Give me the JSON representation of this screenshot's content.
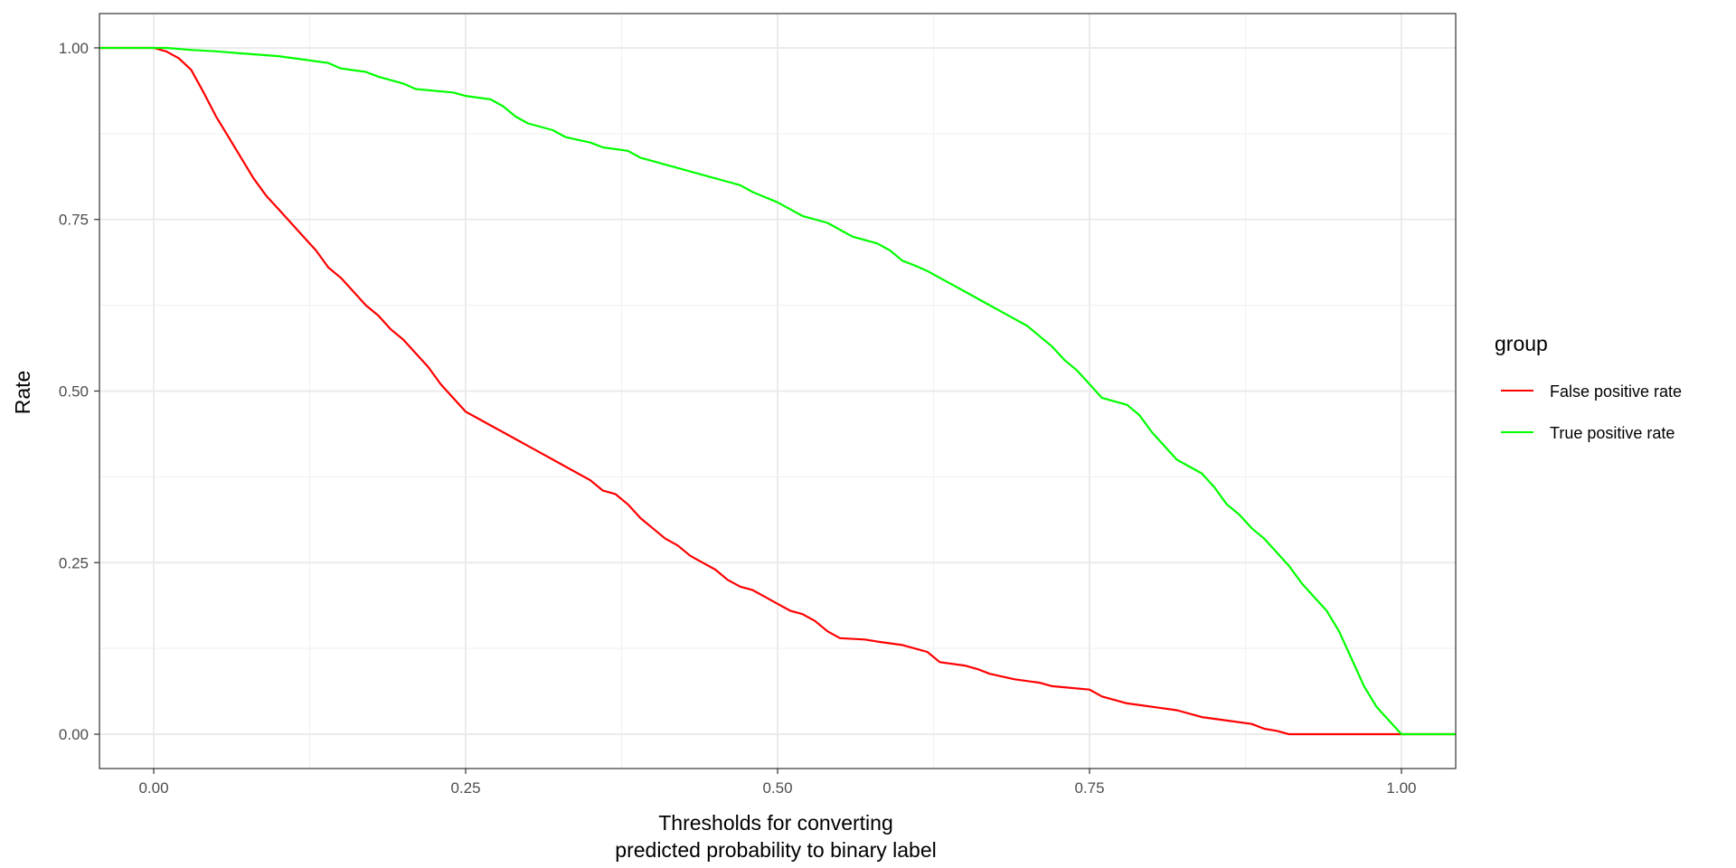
{
  "chart_data": {
    "type": "line",
    "title": "",
    "xlabel_lines": [
      "Thresholds for converting",
      "predicted probability to binary label"
    ],
    "ylabel": "Rate",
    "xlim": [
      -0.0435,
      1.0435
    ],
    "ylim": [
      -0.05,
      1.05
    ],
    "x_ticks": [
      0.0,
      0.25,
      0.5,
      0.75,
      1.0
    ],
    "x_tick_labels": [
      "0.00",
      "0.25",
      "0.50",
      "0.75",
      "1.00"
    ],
    "y_ticks": [
      0.0,
      0.25,
      0.5,
      0.75,
      1.0
    ],
    "y_tick_labels": [
      "0.00",
      "0.25",
      "0.50",
      "0.75",
      "1.00"
    ],
    "grid": true,
    "legend": {
      "title": "group",
      "placement": "right"
    },
    "series": [
      {
        "name": "False positive rate",
        "color": "#FF0000",
        "points": [
          [
            -0.0435,
            1.0
          ],
          [
            0.0,
            1.0
          ],
          [
            0.01,
            0.995
          ],
          [
            0.02,
            0.985
          ],
          [
            0.03,
            0.968
          ],
          [
            0.04,
            0.935
          ],
          [
            0.05,
            0.9
          ],
          [
            0.06,
            0.87
          ],
          [
            0.07,
            0.84
          ],
          [
            0.08,
            0.81
          ],
          [
            0.09,
            0.785
          ],
          [
            0.1,
            0.765
          ],
          [
            0.11,
            0.745
          ],
          [
            0.12,
            0.725
          ],
          [
            0.13,
            0.705
          ],
          [
            0.14,
            0.68
          ],
          [
            0.15,
            0.665
          ],
          [
            0.16,
            0.645
          ],
          [
            0.17,
            0.625
          ],
          [
            0.18,
            0.61
          ],
          [
            0.19,
            0.59
          ],
          [
            0.2,
            0.575
          ],
          [
            0.21,
            0.555
          ],
          [
            0.22,
            0.535
          ],
          [
            0.23,
            0.51
          ],
          [
            0.24,
            0.49
          ],
          [
            0.25,
            0.47
          ],
          [
            0.26,
            0.46
          ],
          [
            0.27,
            0.45
          ],
          [
            0.28,
            0.44
          ],
          [
            0.29,
            0.43
          ],
          [
            0.3,
            0.42
          ],
          [
            0.31,
            0.41
          ],
          [
            0.32,
            0.4
          ],
          [
            0.33,
            0.39
          ],
          [
            0.34,
            0.38
          ],
          [
            0.35,
            0.37
          ],
          [
            0.36,
            0.355
          ],
          [
            0.37,
            0.35
          ],
          [
            0.38,
            0.335
          ],
          [
            0.39,
            0.315
          ],
          [
            0.4,
            0.3
          ],
          [
            0.41,
            0.285
          ],
          [
            0.42,
            0.275
          ],
          [
            0.43,
            0.26
          ],
          [
            0.44,
            0.25
          ],
          [
            0.45,
            0.24
          ],
          [
            0.46,
            0.225
          ],
          [
            0.47,
            0.215
          ],
          [
            0.48,
            0.21
          ],
          [
            0.49,
            0.2
          ],
          [
            0.5,
            0.19
          ],
          [
            0.51,
            0.18
          ],
          [
            0.52,
            0.175
          ],
          [
            0.53,
            0.165
          ],
          [
            0.54,
            0.15
          ],
          [
            0.55,
            0.14
          ],
          [
            0.57,
            0.138
          ],
          [
            0.58,
            0.135
          ],
          [
            0.6,
            0.13
          ],
          [
            0.62,
            0.12
          ],
          [
            0.63,
            0.105
          ],
          [
            0.65,
            0.1
          ],
          [
            0.66,
            0.095
          ],
          [
            0.67,
            0.088
          ],
          [
            0.69,
            0.08
          ],
          [
            0.71,
            0.075
          ],
          [
            0.72,
            0.07
          ],
          [
            0.75,
            0.065
          ],
          [
            0.76,
            0.055
          ],
          [
            0.78,
            0.045
          ],
          [
            0.8,
            0.04
          ],
          [
            0.82,
            0.035
          ],
          [
            0.84,
            0.025
          ],
          [
            0.86,
            0.02
          ],
          [
            0.88,
            0.015
          ],
          [
            0.89,
            0.008
          ],
          [
            0.9,
            0.005
          ],
          [
            0.91,
            0.0
          ],
          [
            1.0,
            0.0
          ],
          [
            1.0435,
            0.0
          ]
        ]
      },
      {
        "name": "True positive rate",
        "color": "#00FF00",
        "points": [
          [
            -0.0435,
            1.0
          ],
          [
            0.01,
            1.0
          ],
          [
            0.03,
            0.997
          ],
          [
            0.05,
            0.995
          ],
          [
            0.07,
            0.992
          ],
          [
            0.1,
            0.988
          ],
          [
            0.12,
            0.983
          ],
          [
            0.14,
            0.978
          ],
          [
            0.15,
            0.97
          ],
          [
            0.17,
            0.965
          ],
          [
            0.18,
            0.958
          ],
          [
            0.2,
            0.948
          ],
          [
            0.21,
            0.94
          ],
          [
            0.24,
            0.935
          ],
          [
            0.25,
            0.93
          ],
          [
            0.27,
            0.925
          ],
          [
            0.28,
            0.915
          ],
          [
            0.29,
            0.9
          ],
          [
            0.3,
            0.89
          ],
          [
            0.32,
            0.88
          ],
          [
            0.33,
            0.87
          ],
          [
            0.35,
            0.862
          ],
          [
            0.36,
            0.855
          ],
          [
            0.38,
            0.85
          ],
          [
            0.39,
            0.84
          ],
          [
            0.4,
            0.835
          ],
          [
            0.42,
            0.825
          ],
          [
            0.44,
            0.815
          ],
          [
            0.46,
            0.805
          ],
          [
            0.47,
            0.8
          ],
          [
            0.48,
            0.79
          ],
          [
            0.5,
            0.775
          ],
          [
            0.51,
            0.765
          ],
          [
            0.52,
            0.755
          ],
          [
            0.54,
            0.745
          ],
          [
            0.55,
            0.735
          ],
          [
            0.56,
            0.725
          ],
          [
            0.58,
            0.715
          ],
          [
            0.59,
            0.705
          ],
          [
            0.6,
            0.69
          ],
          [
            0.61,
            0.683
          ],
          [
            0.62,
            0.675
          ],
          [
            0.63,
            0.665
          ],
          [
            0.64,
            0.655
          ],
          [
            0.65,
            0.645
          ],
          [
            0.66,
            0.635
          ],
          [
            0.67,
            0.625
          ],
          [
            0.68,
            0.615
          ],
          [
            0.69,
            0.605
          ],
          [
            0.7,
            0.595
          ],
          [
            0.71,
            0.58
          ],
          [
            0.72,
            0.565
          ],
          [
            0.73,
            0.545
          ],
          [
            0.74,
            0.53
          ],
          [
            0.75,
            0.51
          ],
          [
            0.76,
            0.49
          ],
          [
            0.77,
            0.485
          ],
          [
            0.78,
            0.48
          ],
          [
            0.79,
            0.465
          ],
          [
            0.8,
            0.44
          ],
          [
            0.81,
            0.42
          ],
          [
            0.82,
            0.4
          ],
          [
            0.83,
            0.39
          ],
          [
            0.84,
            0.38
          ],
          [
            0.85,
            0.36
          ],
          [
            0.86,
            0.335
          ],
          [
            0.87,
            0.32
          ],
          [
            0.88,
            0.3
          ],
          [
            0.89,
            0.285
          ],
          [
            0.9,
            0.265
          ],
          [
            0.91,
            0.245
          ],
          [
            0.92,
            0.22
          ],
          [
            0.93,
            0.2
          ],
          [
            0.94,
            0.18
          ],
          [
            0.95,
            0.15
          ],
          [
            0.96,
            0.11
          ],
          [
            0.97,
            0.07
          ],
          [
            0.98,
            0.04
          ],
          [
            0.99,
            0.02
          ],
          [
            1.0,
            0.0
          ],
          [
            1.0435,
            0.0
          ]
        ]
      }
    ]
  }
}
